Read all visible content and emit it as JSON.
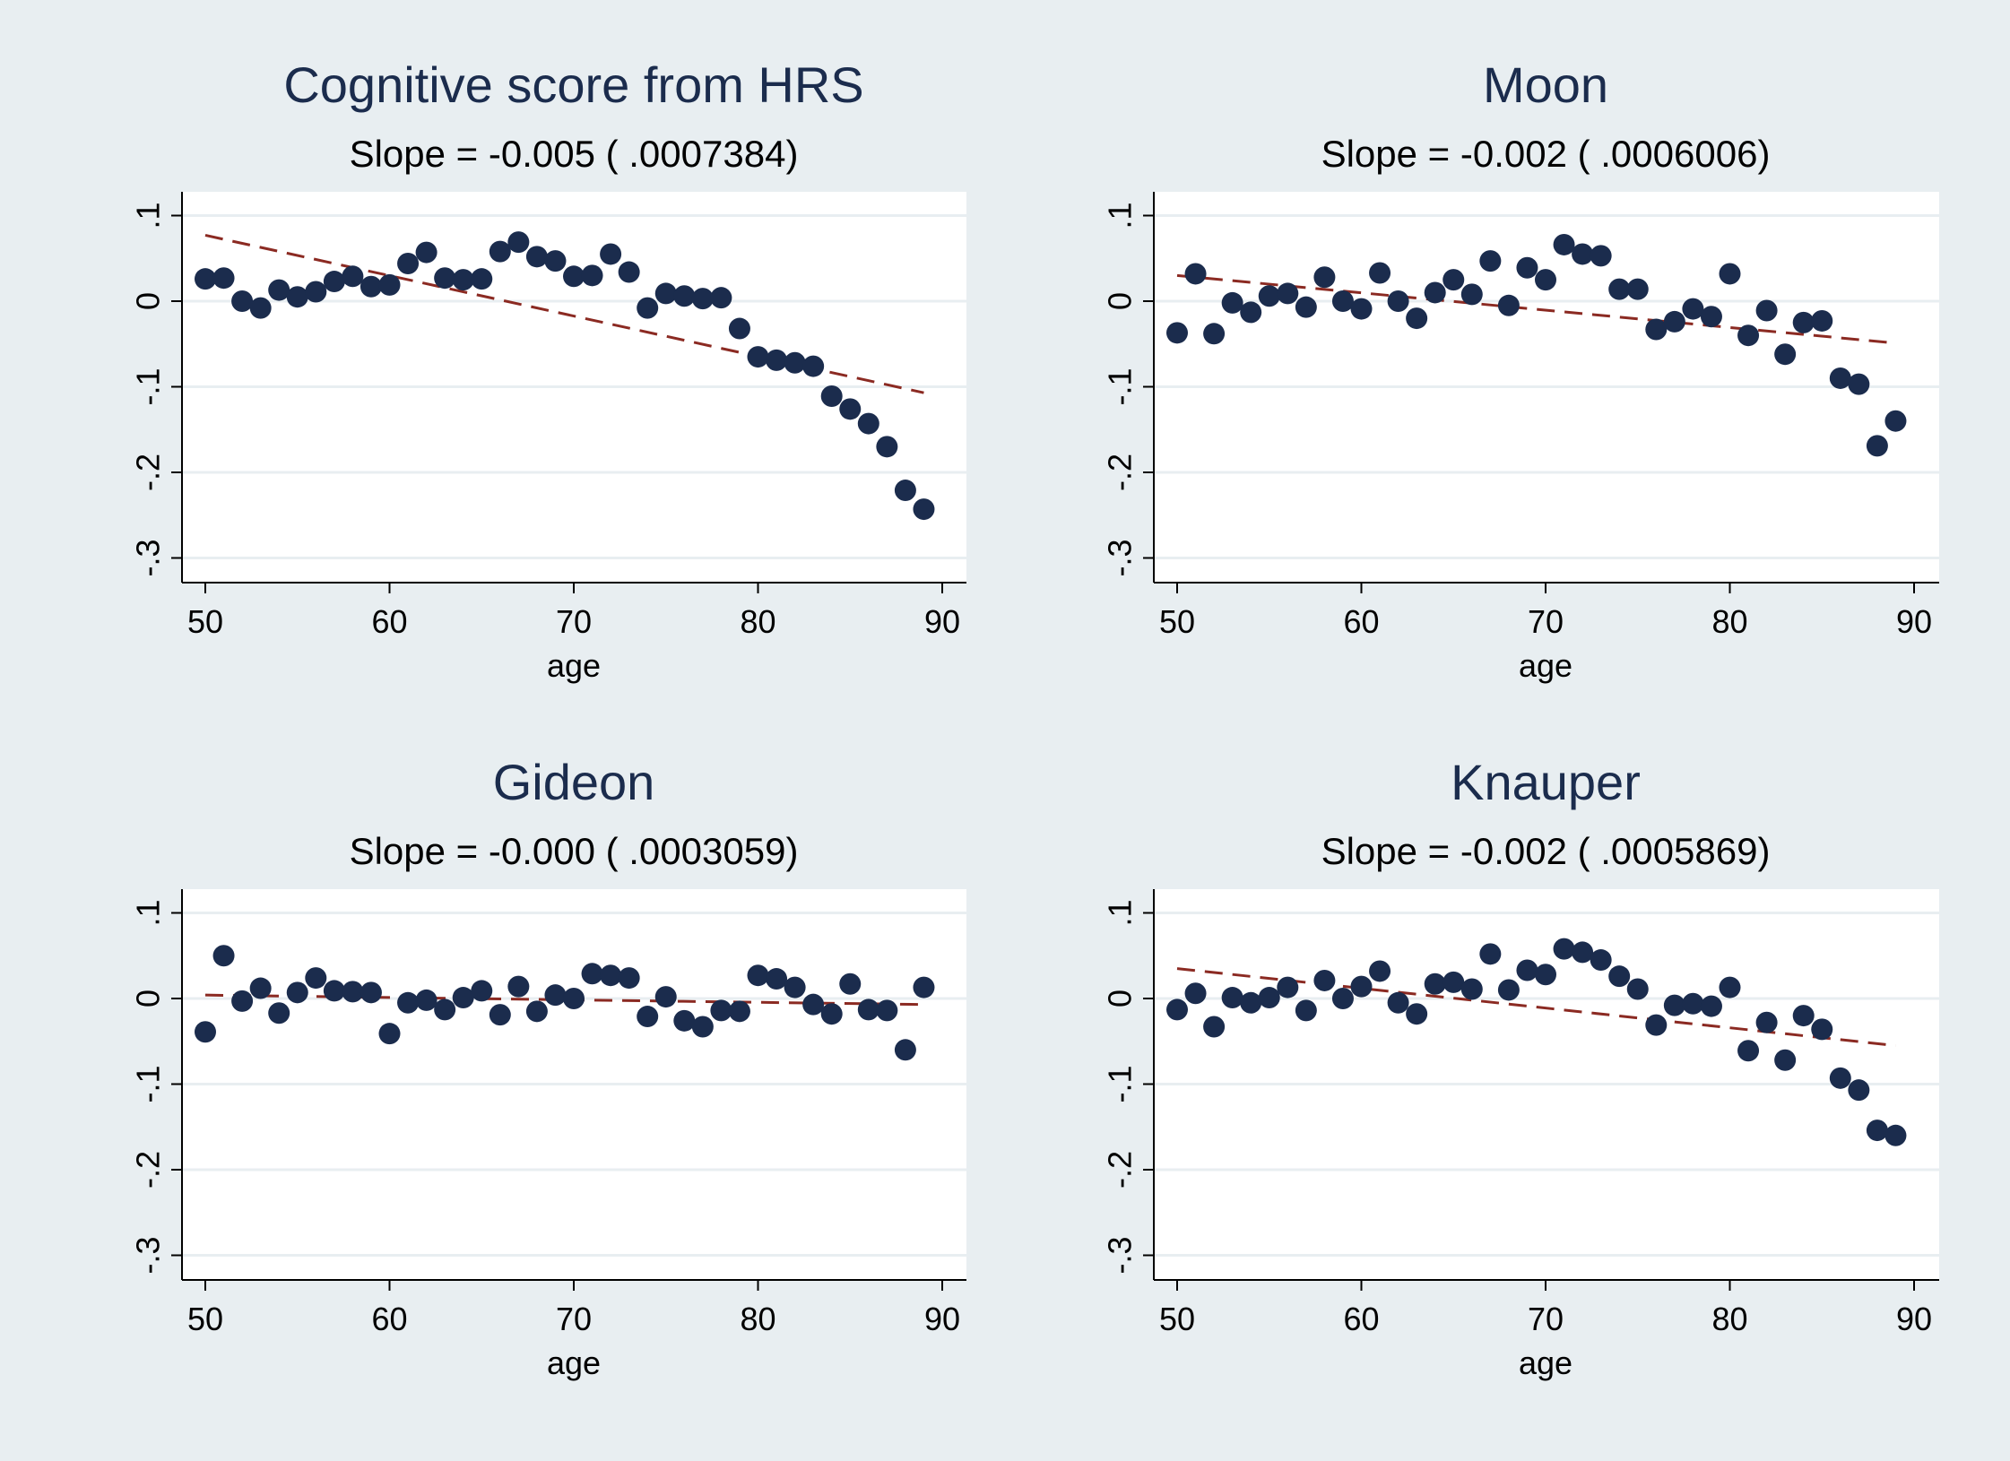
{
  "colors": {
    "figure_background": "#e8eef1",
    "plot_background": "#ffffff",
    "gridline": "#e8eef1",
    "marker": "#1b2c4d",
    "fit_line": "#8b2a22",
    "title": "#1b2c4d"
  },
  "chart_data": [
    {
      "type": "scatter",
      "title": "Cognitive score from HRS",
      "subtitle": "Slope = -0.005 ( .0007384)",
      "xlabel": "age",
      "ylabel": "",
      "xlim": [
        50,
        90
      ],
      "ylim": [
        -0.3,
        0.1
      ],
      "xticks": [
        50,
        60,
        70,
        80,
        90
      ],
      "xtick_labels": [
        "50",
        "60",
        "70",
        "80",
        "90"
      ],
      "yticks": [
        -0.3,
        -0.2,
        -0.1,
        0,
        0.1
      ],
      "ytick_labels": [
        "-.3",
        "-.2",
        "-.1",
        "0",
        ".1"
      ],
      "grid": true,
      "x": [
        50,
        51,
        52,
        53,
        54,
        55,
        56,
        57,
        58,
        59,
        60,
        61,
        62,
        63,
        64,
        65,
        66,
        67,
        68,
        69,
        70,
        71,
        72,
        73,
        74,
        75,
        76,
        77,
        78,
        79,
        80,
        81,
        82,
        83,
        84,
        85,
        86,
        87,
        88,
        89
      ],
      "y": [
        0.026,
        0.027,
        0.0,
        -0.008,
        0.013,
        0.005,
        0.011,
        0.023,
        0.029,
        0.017,
        0.019,
        0.044,
        0.057,
        0.027,
        0.025,
        0.026,
        0.058,
        0.069,
        0.052,
        0.047,
        0.029,
        0.03,
        0.055,
        0.034,
        -0.008,
        0.009,
        0.006,
        0.003,
        0.004,
        -0.032,
        -0.065,
        -0.069,
        -0.072,
        -0.076,
        -0.111,
        -0.126,
        -0.143,
        -0.17,
        -0.221,
        -0.243
      ],
      "fit": {
        "x": [
          50,
          89
        ],
        "y": [
          0.077,
          -0.107
        ]
      }
    },
    {
      "type": "scatter",
      "title": "Moon",
      "subtitle": "Slope = -0.002 ( .0006006)",
      "xlabel": "age",
      "ylabel": "",
      "xlim": [
        50,
        90
      ],
      "ylim": [
        -0.3,
        0.1
      ],
      "xticks": [
        50,
        60,
        70,
        80,
        90
      ],
      "xtick_labels": [
        "50",
        "60",
        "70",
        "80",
        "90"
      ],
      "yticks": [
        -0.3,
        -0.2,
        -0.1,
        0,
        0.1
      ],
      "ytick_labels": [
        "-.3",
        "-.2",
        "-.1",
        "0",
        ".1"
      ],
      "grid": true,
      "x": [
        50,
        51,
        52,
        53,
        54,
        55,
        56,
        57,
        58,
        59,
        60,
        61,
        62,
        63,
        64,
        65,
        66,
        67,
        68,
        69,
        70,
        71,
        72,
        73,
        74,
        75,
        76,
        77,
        78,
        79,
        80,
        81,
        82,
        83,
        84,
        85,
        86,
        87,
        88,
        89
      ],
      "y": [
        -0.037,
        0.032,
        -0.038,
        -0.002,
        -0.013,
        0.006,
        0.009,
        -0.007,
        0.028,
        0.0,
        -0.009,
        0.033,
        0.0,
        -0.02,
        0.01,
        0.025,
        0.008,
        0.047,
        -0.005,
        0.039,
        0.025,
        0.066,
        0.055,
        0.053,
        0.014,
        0.014,
        -0.033,
        -0.024,
        -0.009,
        -0.018,
        0.032,
        -0.04,
        -0.011,
        -0.062,
        -0.025,
        -0.023,
        -0.09,
        -0.097,
        -0.169,
        -0.14
      ],
      "fit": {
        "x": [
          50,
          89
        ],
        "y": [
          0.03,
          -0.049
        ]
      }
    },
    {
      "type": "scatter",
      "title": "Gideon",
      "subtitle": "Slope = -0.000 ( .0003059)",
      "xlabel": "age",
      "ylabel": "",
      "xlim": [
        50,
        90
      ],
      "ylim": [
        -0.3,
        0.1
      ],
      "xticks": [
        50,
        60,
        70,
        80,
        90
      ],
      "xtick_labels": [
        "50",
        "60",
        "70",
        "80",
        "90"
      ],
      "yticks": [
        -0.3,
        -0.2,
        -0.1,
        0,
        0.1
      ],
      "ytick_labels": [
        "-.3",
        "-.2",
        "-.1",
        "0",
        ".1"
      ],
      "grid": true,
      "x": [
        50,
        51,
        52,
        53,
        54,
        55,
        56,
        57,
        58,
        59,
        60,
        61,
        62,
        63,
        64,
        65,
        66,
        67,
        68,
        69,
        70,
        71,
        72,
        73,
        74,
        75,
        76,
        77,
        78,
        79,
        80,
        81,
        82,
        83,
        84,
        85,
        86,
        87,
        88,
        89
      ],
      "y": [
        -0.039,
        0.05,
        -0.003,
        0.012,
        -0.017,
        0.007,
        0.024,
        0.009,
        0.008,
        0.007,
        -0.041,
        -0.005,
        -0.002,
        -0.013,
        0.001,
        0.009,
        -0.019,
        0.014,
        -0.015,
        0.004,
        0.0,
        0.029,
        0.027,
        0.024,
        -0.021,
        0.002,
        -0.026,
        -0.033,
        -0.014,
        -0.015,
        0.027,
        0.023,
        0.013,
        -0.007,
        -0.018,
        0.017,
        -0.013,
        -0.014,
        -0.06,
        0.013
      ],
      "fit": {
        "x": [
          50,
          89
        ],
        "y": [
          0.004,
          -0.007
        ]
      }
    },
    {
      "type": "scatter",
      "title": "Knauper",
      "subtitle": "Slope = -0.002 ( .0005869)",
      "xlabel": "age",
      "ylabel": "",
      "xlim": [
        50,
        90
      ],
      "ylim": [
        -0.3,
        0.1
      ],
      "xticks": [
        50,
        60,
        70,
        80,
        90
      ],
      "xtick_labels": [
        "50",
        "60",
        "70",
        "80",
        "90"
      ],
      "yticks": [
        -0.3,
        -0.2,
        -0.1,
        0,
        0.1
      ],
      "ytick_labels": [
        "-.3",
        "-.2",
        "-.1",
        "0",
        ".1"
      ],
      "grid": true,
      "x": [
        50,
        51,
        52,
        53,
        54,
        55,
        56,
        57,
        58,
        59,
        60,
        61,
        62,
        63,
        64,
        65,
        66,
        67,
        68,
        69,
        70,
        71,
        72,
        73,
        74,
        75,
        76,
        77,
        78,
        79,
        80,
        81,
        82,
        83,
        84,
        85,
        86,
        87,
        88,
        89
      ],
      "y": [
        -0.013,
        0.006,
        -0.033,
        0.001,
        -0.005,
        0.001,
        0.013,
        -0.014,
        0.021,
        0.0,
        0.014,
        0.032,
        -0.005,
        -0.018,
        0.017,
        0.019,
        0.011,
        0.052,
        0.01,
        0.033,
        0.028,
        0.058,
        0.054,
        0.045,
        0.026,
        0.011,
        -0.031,
        -0.008,
        -0.006,
        -0.009,
        0.013,
        -0.061,
        -0.028,
        -0.072,
        -0.02,
        -0.036,
        -0.093,
        -0.107,
        -0.154,
        -0.16
      ],
      "fit": {
        "x": [
          50,
          89
        ],
        "y": [
          0.035,
          -0.055
        ]
      }
    }
  ]
}
